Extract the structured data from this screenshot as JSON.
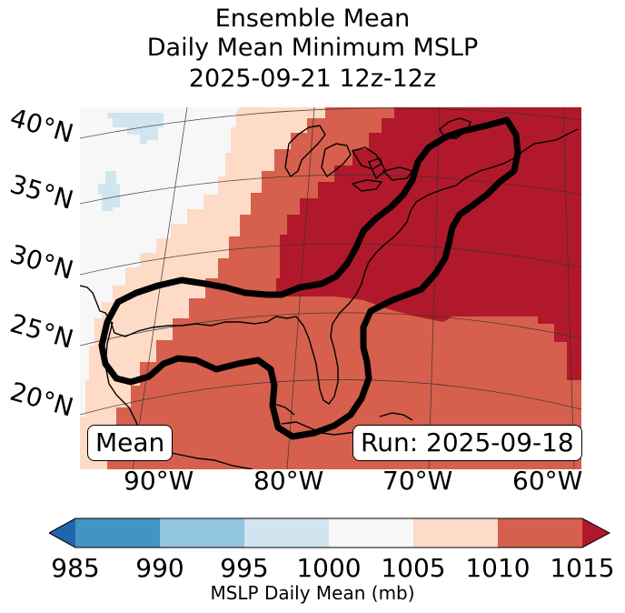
{
  "title": {
    "line1": "Ensemble Mean",
    "line2": "Daily Mean Minimum MSLP",
    "line3": "2025-09-21 12z-12z"
  },
  "lat_labels": [
    "40°N",
    "35°N",
    "30°N",
    "25°N",
    "20°N"
  ],
  "lon_labels": [
    "90°W",
    "80°W",
    "70°W",
    "60°W"
  ],
  "annotations": {
    "left": "Mean",
    "right": "Run: 2025-09-18"
  },
  "colorbar": {
    "label": "MSLP Daily Mean (mb)",
    "ticks": [
      "985",
      "990",
      "995",
      "1000",
      "1005",
      "1010",
      "1015"
    ],
    "bins": [
      {
        "range": "<985",
        "color": "#2166ac"
      },
      {
        "range": "985-990",
        "color": "#4393c3"
      },
      {
        "range": "990-995",
        "color": "#92c5de"
      },
      {
        "range": "995-1000",
        "color": "#d1e5f0"
      },
      {
        "range": "1000-1005",
        "color": "#f7f7f7"
      },
      {
        "range": "1005-1010",
        "color": "#fddbc7"
      },
      {
        "range": "1010-1015",
        "color": "#d6604d"
      },
      {
        "range": ">1015",
        "color": "#b2182b"
      }
    ]
  },
  "map_fill": {
    "colors": {
      "c1000": "#f7f7f7",
      "c995": "#d1e5f0",
      "c1005": "#fddbc7",
      "c1010": "#d6604d",
      "c1015": "#b2182b"
    }
  }
}
